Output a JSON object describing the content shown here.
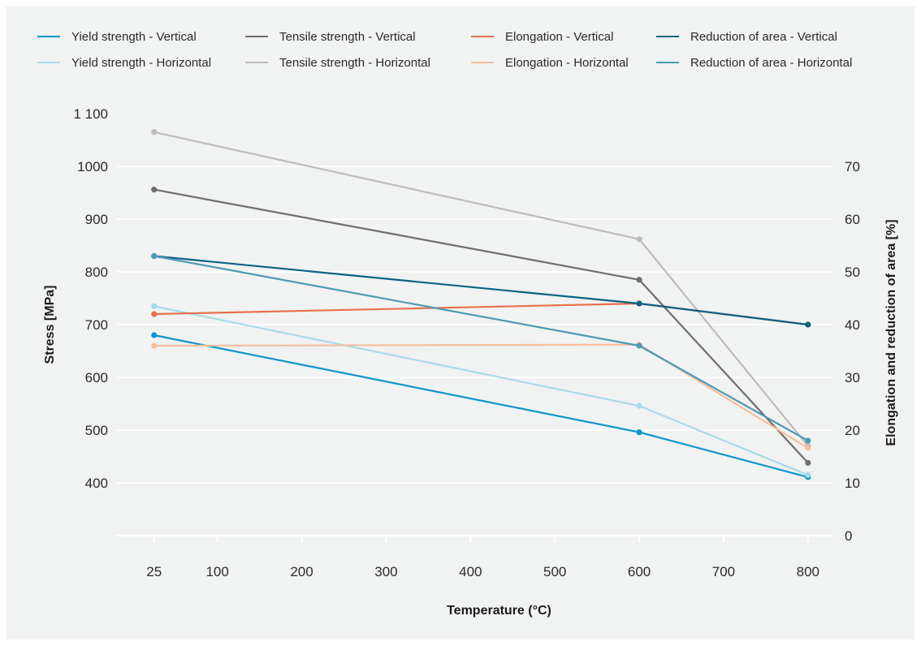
{
  "chart_data": {
    "type": "line",
    "title": "",
    "xlabel": "Temperature (°C)",
    "ylabel": "Stress [MPa]",
    "y2label": "Elongation and reduction of area [%]",
    "x_ticks": [
      25,
      100,
      200,
      300,
      400,
      500,
      600,
      700,
      800
    ],
    "x_tick_labels": [
      "25",
      "100",
      "200",
      "300",
      "400",
      "500",
      "600",
      "700",
      "800"
    ],
    "xlim": [
      -20,
      830
    ],
    "y_ticks": [
      400,
      500,
      600,
      700,
      800,
      900,
      1000,
      1100
    ],
    "y_tick_labels": [
      "400",
      "500",
      "600",
      "700",
      "800",
      "900",
      "1000",
      "1 100"
    ],
    "ylim": [
      300,
      1100
    ],
    "y2_ticks": [
      0,
      10,
      20,
      30,
      40,
      50,
      60,
      70
    ],
    "y2_tick_labels": [
      "0",
      "10",
      "20",
      "30",
      "40",
      "50",
      "60",
      "70"
    ],
    "y2lim": [
      0,
      80
    ],
    "grid": "horizontal",
    "legend_position": "top",
    "series": [
      {
        "name": "Yield strength - Vertical",
        "axis": "left",
        "color": "#0e96cf",
        "x": [
          25,
          600,
          800
        ],
        "values": [
          680,
          496,
          411
        ]
      },
      {
        "name": "Yield strength - Horizontal",
        "axis": "left",
        "color": "#a9dbea",
        "x": [
          25,
          600,
          800
        ],
        "values": [
          735,
          546,
          415
        ]
      },
      {
        "name": "Tensile strength - Vertical",
        "axis": "left",
        "color": "#6e6e6e",
        "x": [
          25,
          600,
          800
        ],
        "values": [
          956,
          785,
          438
        ]
      },
      {
        "name": "Tensile strength - Horizontal",
        "axis": "left",
        "color": "#bcbcbc",
        "x": [
          25,
          600,
          800
        ],
        "values": [
          1065,
          862,
          470
        ]
      },
      {
        "name": "Elongation - Vertical",
        "axis": "right",
        "color": "#e8704a",
        "x": [
          25,
          600,
          800
        ],
        "values": [
          42,
          44,
          40
        ]
      },
      {
        "name": "Elongation - Horizontal",
        "axis": "right",
        "color": "#f6bf9e",
        "x": [
          25,
          600,
          800
        ],
        "values": [
          36,
          36.2,
          16.6
        ]
      },
      {
        "name": "Reduction of area - Vertical",
        "axis": "right",
        "color": "#0b6283",
        "x": [
          25,
          600,
          800
        ],
        "values": [
          53,
          44,
          40
        ]
      },
      {
        "name": "Reduction of area - Horizontal",
        "axis": "right",
        "color": "#4c9ab3",
        "x": [
          25,
          600,
          800
        ],
        "values": [
          53,
          36,
          18
        ]
      }
    ]
  }
}
